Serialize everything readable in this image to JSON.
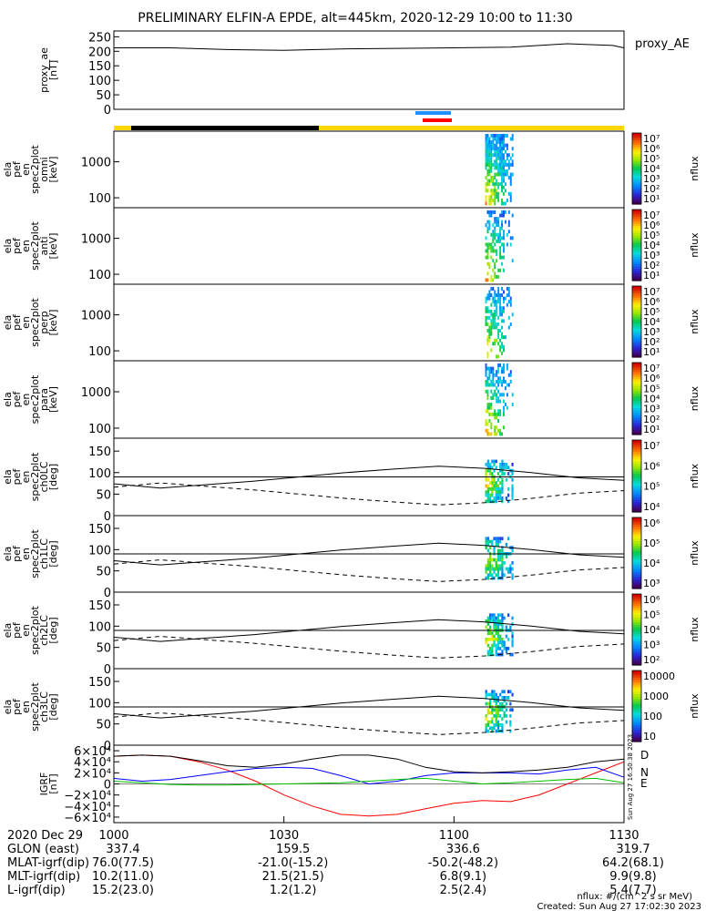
{
  "title": "PRELIMINARY ELFIN-A EPDE, alt=445km, 2020-12-29 10:00 to 11:30",
  "colors": {
    "science_bar_blue": "#1e90ff",
    "science_bar_red": "#ff0000",
    "sunlight_yellow": "#ffd700",
    "shadow_black": "#000000",
    "igrf_D": "#ff0000",
    "igrf_N": "#0000ff",
    "igrf_E": "#00c000"
  },
  "chart_data": [
    {
      "type": "line",
      "panel": "proxy_ae",
      "ylabel": "proxy_ae\n[nT]",
      "legend": "proxy_AE",
      "ylim": [
        0,
        270
      ],
      "yticks": [
        "250",
        "200",
        "150",
        "100",
        "50",
        "0"
      ],
      "ytick_values": [
        250,
        200,
        150,
        100,
        50,
        0
      ],
      "x_minutes": [
        0,
        10,
        20,
        30,
        40,
        50,
        60,
        70,
        80,
        88,
        90
      ],
      "values": [
        212,
        212,
        206,
        203,
        208,
        210,
        212,
        214,
        226,
        220,
        212
      ]
    },
    {
      "type": "heatmap",
      "panel": "spec_omni",
      "ylabel": "ela\npef\nen\nspec2plot\nomni\n[keV]",
      "log_y": true,
      "yticks": [
        "1000",
        "100"
      ],
      "ytick_values": [
        1000,
        100
      ],
      "colorbar_label": "nflux",
      "colorbar_ticks": [
        "10⁷",
        "10⁶",
        "10⁵",
        "10⁴",
        "10³",
        "10²",
        "10¹"
      ],
      "data_interval_minutes": [
        65.5,
        70.5
      ]
    },
    {
      "type": "heatmap",
      "panel": "spec_anti",
      "ylabel": "ela\npef\nen\nspec2plot\nanti\n[keV]",
      "log_y": true,
      "yticks": [
        "1000",
        "100"
      ],
      "ytick_values": [
        1000,
        100
      ],
      "colorbar_label": "nflux",
      "colorbar_ticks": [
        "10⁷",
        "10⁶",
        "10⁵",
        "10⁴",
        "10³",
        "10²",
        "10¹"
      ],
      "data_interval_minutes": [
        65.5,
        70.5
      ]
    },
    {
      "type": "heatmap",
      "panel": "spec_perp",
      "ylabel": "ela\npef\nen\nspec2plot\nperp\n[keV]",
      "log_y": true,
      "yticks": [
        "1000",
        "100"
      ],
      "ytick_values": [
        1000,
        100
      ],
      "colorbar_label": "nflux",
      "colorbar_ticks": [
        "10⁷",
        "10⁶",
        "10⁵",
        "10⁴",
        "10³",
        "10²",
        "10¹"
      ],
      "data_interval_minutes": [
        65.5,
        70.5
      ]
    },
    {
      "type": "heatmap",
      "panel": "spec_para",
      "ylabel": "ela\npef\nen\nspec2plot\npara\n[keV]",
      "log_y": true,
      "yticks": [
        "1000",
        "100"
      ],
      "ytick_values": [
        1000,
        100
      ],
      "colorbar_label": "nflux",
      "colorbar_ticks": [
        "10⁷",
        "10⁶",
        "10⁵",
        "10⁴",
        "10³",
        "10²",
        "10¹"
      ],
      "data_interval_minutes": [
        65.5,
        70.5
      ]
    },
    {
      "type": "heatmap",
      "panel": "ch0LC",
      "ylabel": "ela\npef\nen\nspec2plot\nch0LC\n[deg]",
      "ylim": [
        0,
        180
      ],
      "yticks": [
        "150",
        "100",
        "50",
        "0"
      ],
      "ytick_values": [
        150,
        100,
        50,
        0
      ],
      "colorbar_label": "nflux",
      "colorbar_ticks": [
        "10⁷",
        "10⁶",
        "10⁵",
        "10⁴"
      ],
      "data_interval_minutes": [
        65.5,
        70.5
      ]
    },
    {
      "type": "heatmap",
      "panel": "ch1LC",
      "ylabel": "ela\npef\nen\nspec2plot\nch1LC\n[deg]",
      "ylim": [
        0,
        180
      ],
      "yticks": [
        "150",
        "100",
        "50",
        "0"
      ],
      "ytick_values": [
        150,
        100,
        50,
        0
      ],
      "colorbar_label": "nflux",
      "colorbar_ticks": [
        "10⁶",
        "10⁵",
        "10⁴",
        "10³"
      ],
      "data_interval_minutes": [
        65.5,
        70.5
      ]
    },
    {
      "type": "heatmap",
      "panel": "ch2LC",
      "ylabel": "ela\npef\nen\nspec2plot\nch2LC\n[deg]",
      "ylim": [
        0,
        180
      ],
      "yticks": [
        "150",
        "100",
        "50",
        "0"
      ],
      "ytick_values": [
        150,
        100,
        50,
        0
      ],
      "colorbar_label": "nflux",
      "colorbar_ticks": [
        "10⁶",
        "10⁵",
        "10⁴",
        "10³",
        "10²"
      ],
      "data_interval_minutes": [
        65.5,
        70.5
      ]
    },
    {
      "type": "heatmap",
      "panel": "ch3LC",
      "ylabel": "ela\npef\nen\nspec2plot\nch3LC\n[deg]",
      "ylim": [
        0,
        180
      ],
      "yticks": [
        "150",
        "100",
        "50",
        "0"
      ],
      "ytick_values": [
        150,
        100,
        50,
        0
      ],
      "colorbar_label": "nflux",
      "colorbar_ticks": [
        "10000",
        "1000",
        "100",
        "10"
      ],
      "data_interval_minutes": [
        65.5,
        70.5
      ]
    },
    {
      "type": "line",
      "panel": "IGRF",
      "ylabel": "IGRF\n[nT]",
      "ylim": [
        -70000,
        70000
      ],
      "yticks": [
        "6×10⁴",
        "4×10⁴",
        "2×10⁴",
        "0",
        "−2×10⁴",
        "−4×10⁴",
        "−6×10⁴"
      ],
      "ytick_values": [
        60000,
        40000,
        20000,
        0,
        -20000,
        -40000,
        -60000
      ],
      "x_minutes": [
        0,
        5,
        10,
        15,
        20,
        25,
        30,
        35,
        40,
        45,
        50,
        55,
        60,
        65,
        70,
        75,
        80,
        85,
        90
      ],
      "series": [
        {
          "name": "D",
          "values": [
            50000,
            52000,
            50000,
            40000,
            25000,
            5000,
            -20000,
            -40000,
            -55000,
            -58000,
            -55000,
            -45000,
            -35000,
            -30000,
            -32000,
            -20000,
            0,
            20000,
            40000
          ]
        },
        {
          "name": "N",
          "values": [
            10000,
            5000,
            8000,
            15000,
            22000,
            28000,
            30000,
            28000,
            15000,
            0,
            5000,
            15000,
            20000,
            20000,
            20000,
            18000,
            25000,
            30000,
            12000
          ]
        },
        {
          "name": "E",
          "values": [
            5000,
            2000,
            -1000,
            -2000,
            -2000,
            -1000,
            0,
            1000,
            2000,
            5000,
            8000,
            10000,
            5000,
            0,
            2000,
            5000,
            8000,
            10000,
            2000
          ]
        },
        {
          "name": "",
          "values": [
            50000,
            52000,
            50000,
            42000,
            33000,
            30000,
            36000,
            45000,
            52000,
            52000,
            45000,
            30000,
            22000,
            20000,
            22000,
            25000,
            30000,
            40000,
            45000
          ]
        }
      ]
    }
  ],
  "xaxis": {
    "date_label": "2020 Dec 29",
    "ticks": [
      "1000",
      "1030",
      "1100",
      "1130"
    ],
    "tick_minutes": [
      0,
      30,
      60,
      90
    ],
    "rows": [
      {
        "label": "GLON (east)",
        "values": [
          "337.4",
          "159.5",
          "336.6",
          "319.7"
        ]
      },
      {
        "label": "MLAT-igrf(dip)",
        "values": [
          "76.0(77.5)",
          "-21.0(-15.2)",
          "-50.2(-48.2)",
          "64.2(68.1)"
        ]
      },
      {
        "label": "MLT-igrf(dip)",
        "values": [
          "10.2(11.0)",
          "21.5(21.5)",
          "6.8(9.1)",
          "9.9(9.8)"
        ]
      },
      {
        "label": "L-igrf(dip)",
        "values": [
          "15.2(23.0)",
          "1.2(1.2)",
          "2.5(2.4)",
          "5.4(7.7)"
        ]
      }
    ]
  },
  "footer": {
    "units": "nflux: #/(cm^2 s sr MeV)",
    "created": "Created: Sun Aug 27 17:02:30 2023"
  },
  "side_stamp": "Sun Aug 27 16:50:38 2023"
}
